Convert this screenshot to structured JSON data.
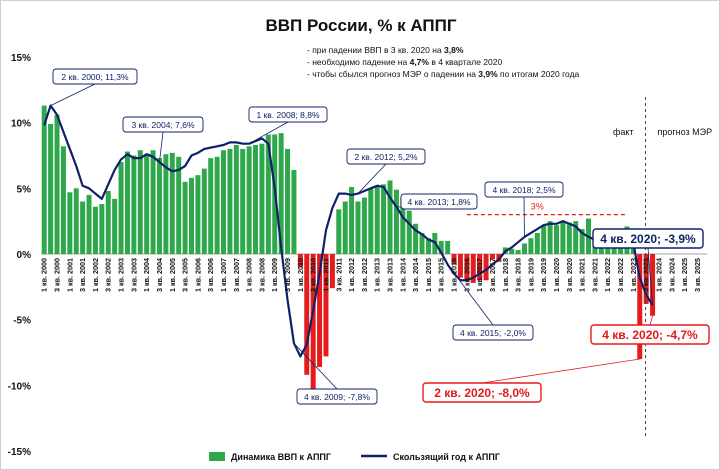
{
  "chart_data": {
    "type": "bar",
    "title": "ВВП России, % к АППГ",
    "notes": [
      {
        "pre": "- при падении ВВП в 3 кв. 2020 на ",
        "bold": "3,8%",
        "post": ""
      },
      {
        "pre": "- необходимо падение на ",
        "bold": "4,7%",
        "post": " в 4 квартале 2020"
      },
      {
        "pre": "- чтобы сбылся прогноз МЭР о падении на ",
        "bold": "3,9%",
        "post": " по итогам 2020 года"
      }
    ],
    "ylim": [
      -15,
      15
    ],
    "yticks": [
      "-15%",
      "-10%",
      "-5%",
      "0%",
      "5%",
      "10%",
      "15%"
    ],
    "ytick_values": [
      -15,
      -10,
      -5,
      0,
      5,
      10,
      15
    ],
    "x_labels": [
      "1 кв. 2000",
      "3 кв. 2000",
      "1 кв. 2001",
      "3 кв. 2001",
      "1 кв. 2002",
      "3 кв. 2002",
      "1 кв. 2003",
      "3 кв. 2003",
      "1 кв. 2004",
      "3 кв. 2004",
      "1 кв. 2005",
      "3 кв. 2005",
      "1 кв. 2006",
      "3 кв. 2006",
      "1 кв. 2007",
      "3 кв. 2007",
      "1 кв. 2008",
      "3 кв. 2008",
      "1 кв. 2009",
      "3 кв. 2009",
      "1 кв. 2010",
      "3 кв. 2010",
      "1 кв. 2011",
      "3 кв. 2011",
      "1 кв. 2012",
      "3 кв. 2012",
      "1 кв. 2013",
      "3 кв. 2013",
      "1 кв. 2014",
      "3 кв. 2014",
      "1 кв. 2015",
      "3 кв. 2015",
      "1 кв. 2016",
      "3 кв. 2016",
      "1 кв. 2017",
      "3 кв. 2017",
      "1 кв. 2018",
      "3 кв. 2018",
      "1 кв. 2019",
      "3 кв. 2019",
      "1 кв. 2020",
      "3 кв. 2020",
      "1 кв. 2021",
      "3 кв. 2021",
      "1 кв. 2022",
      "3 кв. 2022",
      "1 кв. 2023",
      "3 кв. 2023",
      "1 кв. 2024",
      "3 кв. 2024",
      "1 кв. 2025",
      "3 кв. 2025"
    ],
    "quarters_total": 104,
    "series": [
      {
        "name": "Динамика ВВП к АППГ",
        "color": "#2ea84a",
        "negative_color": "#e51c1c",
        "values": [
          11.3,
          9.9,
          10.6,
          8.2,
          4.7,
          5.0,
          4.0,
          4.5,
          3.6,
          3.8,
          4.8,
          4.2,
          7.0,
          7.8,
          7.5,
          7.9,
          7.6,
          7.9,
          7.3,
          7.6,
          7.7,
          7.4,
          5.5,
          5.8,
          6.0,
          6.5,
          7.3,
          7.4,
          7.9,
          8.0,
          8.3,
          8.0,
          8.2,
          8.3,
          8.4,
          9.1,
          9.1,
          9.2,
          8.0,
          6.4,
          -1.0,
          -9.2,
          -11.2,
          -8.6,
          -7.8,
          -2.6,
          3.4,
          4.0,
          5.1,
          4.0,
          4.3,
          5.0,
          5.2,
          5.3,
          5.6,
          4.9,
          4.3,
          3.3,
          2.3,
          1.6,
          1.2,
          1.6,
          1.0,
          1.0,
          -0.8,
          -1.8,
          -2.0,
          -2.2,
          -2.0,
          -2.0,
          -0.4,
          -0.6,
          0.5,
          0.4,
          0.3,
          0.8,
          1.2,
          1.6,
          2.2,
          2.5,
          2.2,
          2.5,
          2.4,
          2.5,
          1.9,
          2.7,
          0.7,
          1.0,
          1.2,
          1.1,
          1.5,
          2.1,
          1.6,
          -8.0,
          -3.8,
          -4.7
        ]
      },
      {
        "name": "Скользящий год к АППГ",
        "color": "#10206b",
        "values": [
          9.8,
          11.3,
          10.6,
          9.3,
          8.0,
          6.7,
          5.2,
          5.0,
          4.6,
          4.2,
          5.3,
          6.4,
          7.2,
          7.6,
          7.3,
          7.3,
          7.6,
          7.4,
          7.0,
          6.6,
          6.3,
          6.4,
          6.7,
          7.5,
          7.7,
          8.0,
          8.1,
          8.2,
          8.3,
          8.5,
          8.5,
          8.4,
          8.4,
          8.6,
          8.8,
          8.4,
          5.0,
          0.5,
          -3.5,
          -6.8,
          -7.8,
          -6.9,
          -4.3,
          -1.5,
          1.8,
          3.5,
          4.6,
          4.6,
          4.5,
          4.6,
          4.8,
          5.0,
          5.2,
          5.1,
          4.3,
          3.6,
          2.8,
          2.3,
          1.8,
          1.5,
          1.1,
          0.9,
          0.1,
          -0.8,
          -1.5,
          -2.0,
          -2.0,
          -1.8,
          -1.5,
          -1.2,
          -0.8,
          -0.4,
          0.2,
          0.5,
          0.9,
          1.3,
          1.6,
          1.9,
          2.2,
          2.3,
          2.3,
          2.5,
          2.3,
          2.1,
          1.6,
          1.3,
          1.1,
          1.3,
          1.4,
          1.6,
          1.7,
          1.5,
          0.8,
          -1.8,
          -3.1,
          -3.9
        ]
      }
    ],
    "forecast_start_index": 93,
    "annotations": [
      {
        "text": "2 кв. 2000; 11,3%",
        "color": "#10206b",
        "size": "small"
      },
      {
        "text": "3 кв. 2004; 7,6%",
        "color": "#10206b",
        "size": "small"
      },
      {
        "text": "1 кв. 2008; 8,8%",
        "color": "#10206b",
        "size": "small"
      },
      {
        "text": "4 кв. 2009; -7,8%",
        "color": "#10206b",
        "size": "small"
      },
      {
        "text": "2 кв. 2012; 5,2%",
        "color": "#10206b",
        "size": "small"
      },
      {
        "text": "4 кв. 2013; 1,8%",
        "color": "#10206b",
        "size": "small"
      },
      {
        "text": "4 кв. 2015; -2,0%",
        "color": "#10206b",
        "size": "small"
      },
      {
        "text": "4 кв. 2018; 2,5%",
        "color": "#10206b",
        "size": "small"
      },
      {
        "text": "4 кв. 2020; -3,9%",
        "color": "#10206b",
        "size": "big"
      },
      {
        "text": "2 кв. 2020; -8,0%",
        "color": "#e51c1c",
        "size": "big"
      },
      {
        "text": "4 кв. 2020; -4,7%",
        "color": "#e51c1c",
        "size": "big"
      }
    ],
    "reference_line": {
      "value": 3,
      "label": "3%",
      "color": "#e51c1c"
    },
    "region_labels": {
      "fact": "факт",
      "forecast": "прогноз МЭР"
    },
    "grid": false,
    "legend_position": "bottom"
  }
}
